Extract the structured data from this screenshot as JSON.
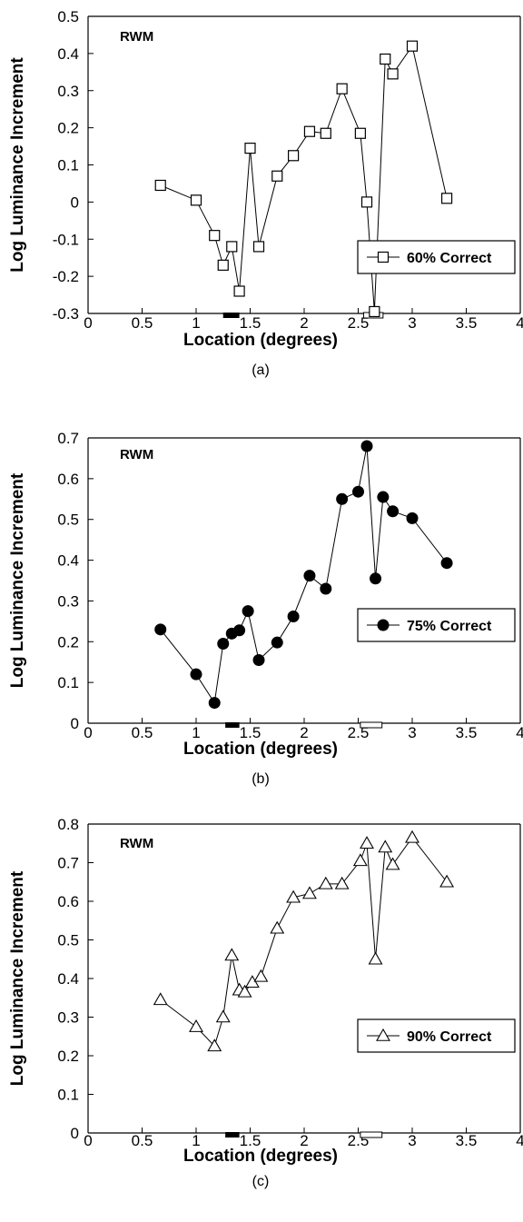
{
  "chart_data": [
    {
      "type": "line",
      "panel_label": "(a)",
      "corner_label": "RWM",
      "xlabel": "Location (degrees)",
      "ylabel": "Log Luminance Increment",
      "xlim": [
        0,
        4
      ],
      "ylim": [
        -0.3,
        0.5
      ],
      "xticks": [
        "0",
        "0.5",
        "1",
        "1.5",
        "2",
        "2.5",
        "3",
        "3.5",
        "4"
      ],
      "yticks": [
        "-0.3",
        "-0.2",
        "-0.1",
        "0",
        "0.1",
        "0.2",
        "0.3",
        "0.4",
        "0.5"
      ],
      "legend_position": "lower-right",
      "markers": [
        {
          "kind": "filled",
          "from": 1.25,
          "to": 1.4
        },
        {
          "kind": "open",
          "from": 2.55,
          "to": 2.73
        }
      ],
      "series": [
        {
          "name": "60% Correct",
          "marker": "square",
          "x": [
            0.67,
            1.0,
            1.17,
            1.25,
            1.33,
            1.4,
            1.5,
            1.58,
            1.75,
            1.9,
            2.05,
            2.2,
            2.35,
            2.52,
            2.58,
            2.65,
            2.75,
            2.82,
            3.0,
            3.32
          ],
          "y": [
            0.045,
            0.005,
            -0.09,
            -0.17,
            -0.12,
            -0.24,
            0.145,
            -0.12,
            0.07,
            0.125,
            0.19,
            0.185,
            0.305,
            0.185,
            0.0,
            -0.295,
            0.385,
            0.345,
            0.42,
            0.01
          ]
        }
      ]
    },
    {
      "type": "line",
      "panel_label": "(b)",
      "corner_label": "RWM",
      "xlabel": "Location (degrees)",
      "ylabel": "Log Luminance Increment",
      "xlim": [
        0,
        4
      ],
      "ylim": [
        0,
        0.7
      ],
      "xticks": [
        "0",
        "0.5",
        "1",
        "1.5",
        "2",
        "2.5",
        "3",
        "3.5",
        "4"
      ],
      "yticks": [
        "0",
        "0.1",
        "0.2",
        "0.3",
        "0.4",
        "0.5",
        "0.6",
        "0.7"
      ],
      "legend_position": "middle-right",
      "markers": [
        {
          "kind": "filled",
          "from": 1.27,
          "to": 1.4
        },
        {
          "kind": "open",
          "from": 2.52,
          "to": 2.72
        }
      ],
      "series": [
        {
          "name": "75% Correct",
          "marker": "circle",
          "x": [
            0.67,
            1.0,
            1.17,
            1.25,
            1.33,
            1.4,
            1.48,
            1.58,
            1.75,
            1.9,
            2.05,
            2.2,
            2.35,
            2.5,
            2.58,
            2.66,
            2.73,
            2.82,
            3.0,
            3.32
          ],
          "y": [
            0.23,
            0.12,
            0.05,
            0.195,
            0.22,
            0.228,
            0.275,
            0.155,
            0.198,
            0.262,
            0.362,
            0.33,
            0.55,
            0.568,
            0.68,
            0.355,
            0.555,
            0.52,
            0.503,
            0.393
          ]
        }
      ]
    },
    {
      "type": "line",
      "panel_label": "(c)",
      "corner_label": "RWM",
      "xlabel": "Location (degrees)",
      "ylabel": "Log Luminance Increment",
      "xlim": [
        0,
        4
      ],
      "ylim": [
        0,
        0.8
      ],
      "xticks": [
        "0",
        "0.5",
        "1",
        "1.5",
        "2",
        "2.5",
        "3",
        "3.5",
        "4"
      ],
      "yticks": [
        "0",
        "0.1",
        "0.2",
        "0.3",
        "0.4",
        "0.5",
        "0.6",
        "0.7",
        "0.8"
      ],
      "legend_position": "middle-right",
      "markers": [
        {
          "kind": "filled",
          "from": 1.27,
          "to": 1.4
        },
        {
          "kind": "open",
          "from": 2.52,
          "to": 2.72
        }
      ],
      "series": [
        {
          "name": "90% Correct",
          "marker": "triangle",
          "x": [
            0.67,
            1.0,
            1.17,
            1.25,
            1.33,
            1.4,
            1.45,
            1.52,
            1.6,
            1.75,
            1.9,
            2.05,
            2.2,
            2.35,
            2.52,
            2.58,
            2.66,
            2.75,
            2.82,
            3.0,
            3.32
          ],
          "y": [
            0.345,
            0.275,
            0.225,
            0.3,
            0.46,
            0.37,
            0.365,
            0.39,
            0.405,
            0.53,
            0.61,
            0.62,
            0.645,
            0.645,
            0.705,
            0.75,
            0.45,
            0.74,
            0.695,
            0.765,
            0.65
          ]
        }
      ]
    }
  ]
}
